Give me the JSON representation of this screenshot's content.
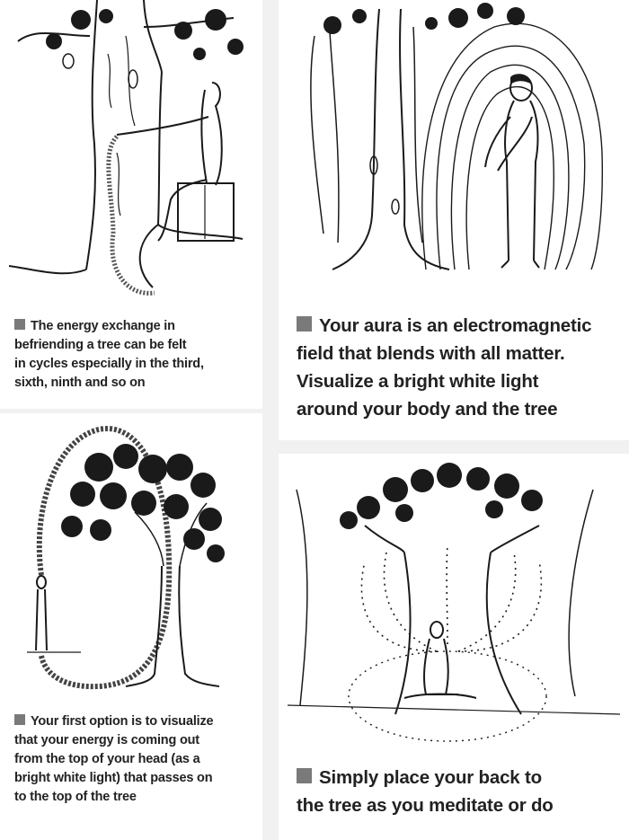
{
  "panels": [
    {
      "scene": "person-seated-embracing-tree-icon",
      "caption_lines": [
        "The energy exchange in",
        "befriending a tree can be felt",
        "in cycles especially in the third,",
        "sixth, ninth and so on"
      ]
    },
    {
      "scene": "person-aura-beside-tree-icon",
      "caption_lines": [
        "Your aura is an electromagnetic",
        "field that blends with all matter.",
        "Visualize a bright white light",
        "around your body and the tree"
      ]
    },
    {
      "scene": "energy-loop-from-head-to-treetop-icon",
      "caption_lines": [
        "Your first option is to visualize",
        "that your energy is coming out",
        "from the top of your head (as a",
        "bright white light) that passes on",
        "to the top of the tree"
      ]
    },
    {
      "scene": "person-meditating-against-tree-icon",
      "caption_lines": [
        "Simply place your back to",
        "the tree as you meditate or do"
      ]
    }
  ],
  "colors": {
    "bullet": "#7a7a7a",
    "ink": "#1a1a1a",
    "page": "#f1f1f1",
    "panel": "#ffffff"
  }
}
